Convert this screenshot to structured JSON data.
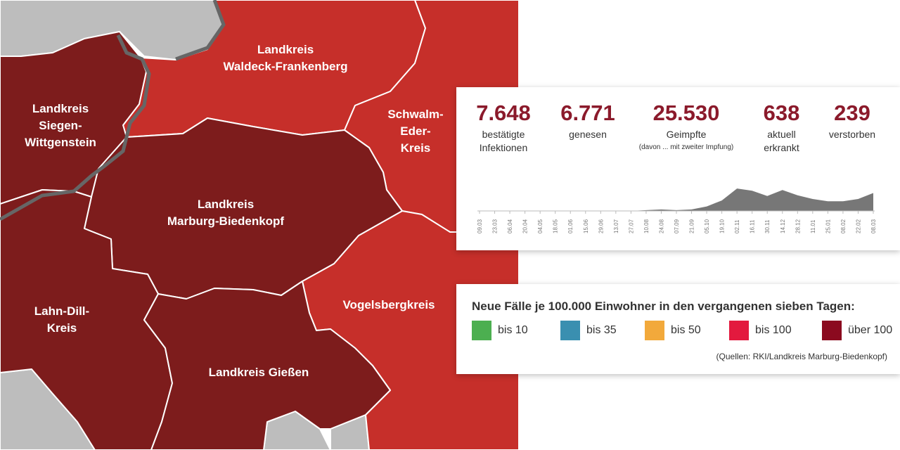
{
  "map": {
    "colors": {
      "over_100": "#7d1c1c",
      "bis_100_fill": "#c62f2a",
      "outside": "#bdbdbd",
      "border": "#ffffff",
      "state_border": "#666666"
    },
    "regions": [
      {
        "id": "waldeck",
        "label_lines": [
          "Landkreis",
          "Waldeck-Frankenberg"
        ]
      },
      {
        "id": "siegen",
        "label_lines": [
          "Landkreis",
          "Siegen-",
          "Wittgenstein"
        ]
      },
      {
        "id": "schwalm",
        "label_lines": [
          "Schwalm-",
          "Eder-",
          "Kreis"
        ]
      },
      {
        "id": "marburg",
        "label_lines": [
          "Landkreis",
          "Marburg-Biedenkopf"
        ]
      },
      {
        "id": "lahn-dill",
        "label_lines": [
          "Lahn-Dill-",
          "Kreis"
        ]
      },
      {
        "id": "vogelsberg",
        "label_lines": [
          "Vogelsbergkreis"
        ]
      },
      {
        "id": "giessen",
        "label_lines": [
          "Landkreis Gießen"
        ]
      }
    ]
  },
  "stats": [
    {
      "value": "7.648",
      "label_lines": [
        "bestätigte",
        "Infektionen"
      ]
    },
    {
      "value": "6.771",
      "label_lines": [
        "genesen"
      ]
    },
    {
      "value": "25.530",
      "label_lines": [
        "Geimpfte"
      ],
      "note": "(davon ... mit zweiter Impfung)"
    },
    {
      "value": "638",
      "label_lines": [
        "aktuell",
        "erkrankt"
      ]
    },
    {
      "value": "239",
      "label_lines": [
        "verstorben"
      ]
    }
  ],
  "chart_data": {
    "type": "area",
    "title": "",
    "xlabel": "",
    "ylabel": "",
    "x": [
      "09.03",
      "23.03",
      "06.04",
      "20.04",
      "04.05",
      "18.05",
      "01.06",
      "15.06",
      "29.06",
      "13.07",
      "27.07",
      "10.08",
      "24.08",
      "07.09",
      "21.09",
      "05.10",
      "19.10",
      "02.11",
      "16.11",
      "30.11",
      "14.12",
      "28.12",
      "11.01",
      "25.01",
      "08.02",
      "22.02",
      "08.03"
    ],
    "values": [
      0,
      0,
      0,
      0,
      0,
      0,
      0,
      0,
      0,
      0,
      0,
      1,
      2,
      1,
      2,
      6,
      14,
      30,
      27,
      20,
      28,
      21,
      16,
      13,
      13,
      16,
      24
    ],
    "ylim": [
      0,
      32
    ],
    "grid": false,
    "color": "#777777"
  },
  "legend": {
    "title": "Neue Fälle je 100.000 Einwohner in den vergangenen sieben Tagen:",
    "items": [
      {
        "label": "bis 10",
        "color": "#4caf50"
      },
      {
        "label": "bis 35",
        "color": "#3a8fb0"
      },
      {
        "label": "bis 50",
        "color": "#f2a93b"
      },
      {
        "label": "bis 100",
        "color": "#e3193e"
      },
      {
        "label": "über 100",
        "color": "#8b0a1f"
      }
    ],
    "source": "(Quellen: RKI/Landkreis Marburg-Biedenkopf)"
  }
}
